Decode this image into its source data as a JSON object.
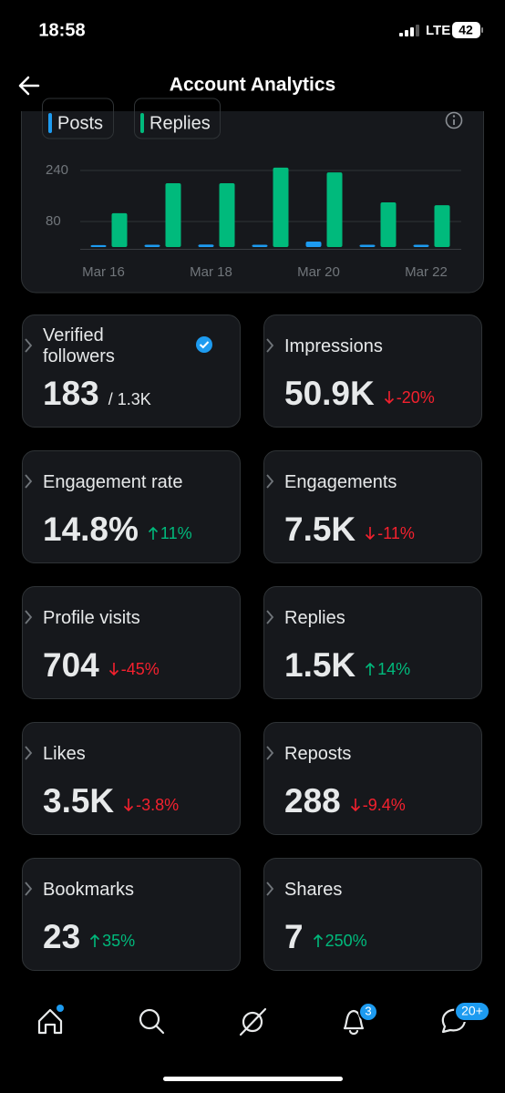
{
  "status": {
    "time": "18:58",
    "network": "LTE",
    "battery": "42"
  },
  "header": {
    "title": "Account Analytics"
  },
  "chart_data": {
    "type": "bar",
    "categories": [
      "Mar 16",
      null,
      "Mar 18",
      null,
      "Mar 20",
      null,
      "Mar 22"
    ],
    "series": [
      {
        "name": "Posts",
        "color": "#1d9bf0",
        "values": [
          6,
          7,
          8,
          7,
          17,
          7,
          7
        ]
      },
      {
        "name": "Replies",
        "color": "#00ba7c",
        "values": [
          106,
          200,
          200,
          249,
          234,
          140,
          131
        ]
      }
    ],
    "ylim": [
      0,
      260
    ],
    "yticks": [
      80,
      240
    ],
    "grid": true
  },
  "tiles": [
    {
      "label": "Verified followers",
      "value": "183",
      "total": "/ 1.3K",
      "verified": true
    },
    {
      "label": "Impressions",
      "value": "50.9K",
      "change": "-20%",
      "direction": "down"
    },
    {
      "label": "Engagement rate",
      "value": "14.8%",
      "change": "11%",
      "direction": "up"
    },
    {
      "label": "Engagements",
      "value": "7.5K",
      "change": "-11%",
      "direction": "down"
    },
    {
      "label": "Profile visits",
      "value": "704",
      "change": "-45%",
      "direction": "down"
    },
    {
      "label": "Replies",
      "value": "1.5K",
      "change": "14%",
      "direction": "up"
    },
    {
      "label": "Likes",
      "value": "3.5K",
      "change": "-3.8%",
      "direction": "down"
    },
    {
      "label": "Reposts",
      "value": "288",
      "change": "-9.4%",
      "direction": "down"
    },
    {
      "label": "Bookmarks",
      "value": "23",
      "change": "35%",
      "direction": "up"
    },
    {
      "label": "Shares",
      "value": "7",
      "change": "250%",
      "direction": "up"
    }
  ],
  "nav": {
    "notifications_badge": "3",
    "messages_badge": "20+"
  }
}
